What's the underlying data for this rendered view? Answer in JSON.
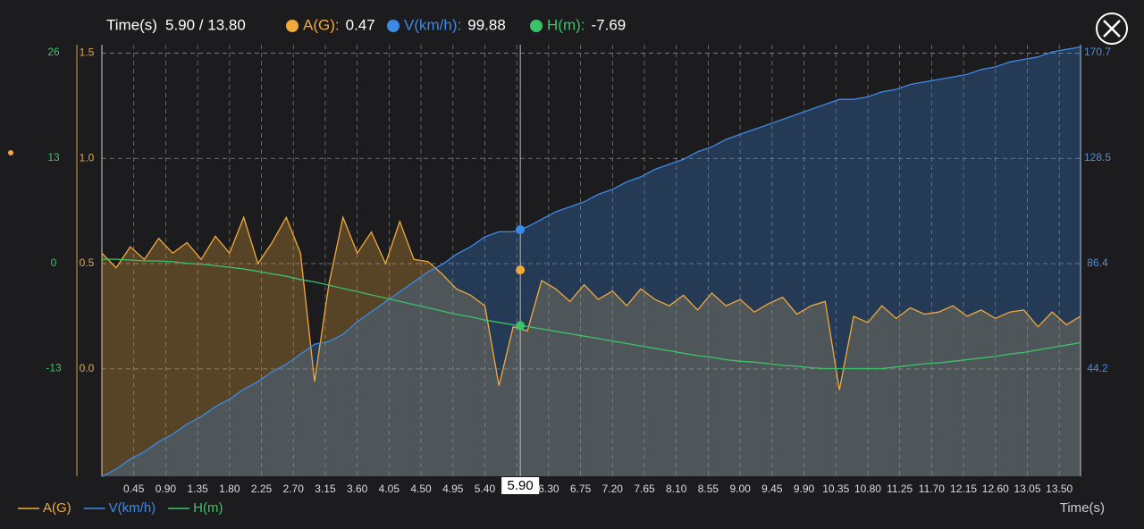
{
  "chart_data": {
    "type": "line",
    "x_label": "Time(s)",
    "xlim": [
      0,
      13.8
    ],
    "xticks": [
      {
        "value": 0.45,
        "label": "0.45"
      },
      {
        "value": 0.9,
        "label": "0.90"
      },
      {
        "value": 1.35,
        "label": "1.35"
      },
      {
        "value": 1.8,
        "label": "1.80"
      },
      {
        "value": 2.25,
        "label": "2.25"
      },
      {
        "value": 2.7,
        "label": "2.70"
      },
      {
        "value": 3.15,
        "label": "3.15"
      },
      {
        "value": 3.6,
        "label": "3.60"
      },
      {
        "value": 4.05,
        "label": "4.05"
      },
      {
        "value": 4.5,
        "label": "4.50"
      },
      {
        "value": 4.95,
        "label": "4.95"
      },
      {
        "value": 5.4,
        "label": "5.40"
      },
      {
        "value": 5.85,
        "label": "5.85"
      },
      {
        "value": 6.3,
        "label": "6.30"
      },
      {
        "value": 6.75,
        "label": "6.75"
      },
      {
        "value": 7.2,
        "label": "7.20"
      },
      {
        "value": 7.65,
        "label": "7.65"
      },
      {
        "value": 8.1,
        "label": "8.10"
      },
      {
        "value": 8.55,
        "label": "8.55"
      },
      {
        "value": 9.0,
        "label": "9.00"
      },
      {
        "value": 9.45,
        "label": "9.45"
      },
      {
        "value": 9.9,
        "label": "9.90"
      },
      {
        "value": 10.35,
        "label": "10.35"
      },
      {
        "value": 10.8,
        "label": "10.80"
      },
      {
        "value": 11.25,
        "label": "11.25"
      },
      {
        "value": 11.7,
        "label": "11.70"
      },
      {
        "value": 12.15,
        "label": "12.15"
      },
      {
        "value": 12.6,
        "label": "12.60"
      },
      {
        "value": 13.05,
        "label": "13.05"
      },
      {
        "value": 13.5,
        "label": "13.50"
      }
    ],
    "ylim": [
      -0.51,
      1.54
    ],
    "yticks": [
      {
        "value": 0,
        "label": "0.0"
      },
      0.5,
      {
        "value": 1,
        "label": "1.0"
      },
      1.5
    ],
    "y2lim": [
      1.15,
      173.9
    ],
    "y2ticks": [
      44.2,
      86.4,
      128.5,
      170.7
    ],
    "y3lim": [
      -26.3,
      27
    ],
    "y3ticks": [
      -13,
      0,
      13,
      26
    ],
    "grid": true,
    "x": [
      0,
      0.2,
      0.4,
      0.6,
      0.8,
      1.0,
      1.2,
      1.4,
      1.6,
      1.8,
      2.0,
      2.2,
      2.4,
      2.6,
      2.8,
      3.0,
      3.2,
      3.4,
      3.6,
      3.8,
      4.0,
      4.2,
      4.4,
      4.6,
      4.8,
      5.0,
      5.2,
      5.4,
      5.6,
      5.8,
      6.0,
      6.2,
      6.4,
      6.6,
      6.8,
      7.0,
      7.2,
      7.4,
      7.6,
      7.8,
      8.0,
      8.2,
      8.4,
      8.6,
      8.8,
      9.0,
      9.2,
      9.4,
      9.6,
      9.8,
      10.0,
      10.2,
      10.4,
      10.6,
      10.8,
      11.0,
      11.2,
      11.4,
      11.6,
      11.8,
      12.0,
      12.2,
      12.4,
      12.6,
      12.8,
      13.0,
      13.2,
      13.4,
      13.6,
      13.8
    ],
    "series": [
      {
        "name": "A(G)",
        "color": "#f2a93b",
        "axis": "y",
        "fill": true,
        "values": [
          0.55,
          0.48,
          0.58,
          0.52,
          0.62,
          0.55,
          0.6,
          0.52,
          0.63,
          0.55,
          0.72,
          0.5,
          0.6,
          0.72,
          0.55,
          -0.06,
          0.4,
          0.72,
          0.55,
          0.65,
          0.5,
          0.7,
          0.52,
          0.51,
          0.45,
          0.38,
          0.35,
          0.3,
          -0.08,
          0.2,
          0.18,
          0.42,
          0.38,
          0.32,
          0.4,
          0.33,
          0.37,
          0.3,
          0.38,
          0.33,
          0.3,
          0.35,
          0.28,
          0.36,
          0.3,
          0.33,
          0.27,
          0.31,
          0.34,
          0.26,
          0.3,
          0.32,
          -0.1,
          0.25,
          0.22,
          0.3,
          0.24,
          0.29,
          0.26,
          0.27,
          0.3,
          0.25,
          0.28,
          0.24,
          0.27,
          0.28,
          0.2,
          0.27,
          0.21,
          0.25
        ]
      },
      {
        "name": "V(km/h)",
        "color": "#3d8ae6",
        "axis": "y2",
        "fill": true,
        "values": [
          1,
          4,
          8,
          11,
          15,
          18,
          22,
          25,
          29,
          32,
          36,
          39,
          43,
          46,
          50,
          54,
          55,
          58,
          63,
          67,
          71,
          75,
          79,
          83,
          86,
          90,
          93,
          97,
          99,
          99,
          101,
          104,
          107,
          109,
          111,
          114,
          116,
          119,
          121,
          124,
          126,
          128,
          131,
          133,
          136,
          138,
          140,
          142,
          144,
          146,
          148,
          150,
          152,
          152,
          153,
          155,
          156,
          158,
          159,
          160,
          161,
          162,
          164,
          165,
          167,
          168,
          169,
          171,
          172,
          173
        ]
      },
      {
        "name": "H(m)",
        "color": "#3cc36a",
        "axis": "y3",
        "fill": false,
        "values": [
          0.5,
          0.5,
          0.4,
          0.3,
          0.3,
          0.2,
          0,
          -0.1,
          -0.3,
          -0.5,
          -0.7,
          -1.0,
          -1.3,
          -1.6,
          -2.0,
          -2.3,
          -2.7,
          -3.1,
          -3.5,
          -3.9,
          -4.3,
          -4.7,
          -5.1,
          -5.5,
          -5.9,
          -6.3,
          -6.6,
          -7.0,
          -7.3,
          -7.6,
          -7.8,
          -8.1,
          -8.4,
          -8.7,
          -9.0,
          -9.3,
          -9.6,
          -9.9,
          -10.2,
          -10.5,
          -10.8,
          -11.1,
          -11.4,
          -11.6,
          -11.9,
          -12.1,
          -12.2,
          -12.4,
          -12.6,
          -12.7,
          -12.9,
          -13.0,
          -13.0,
          -13.0,
          -13.0,
          -13.0,
          -12.8,
          -12.6,
          -12.4,
          -12.3,
          -12.1,
          -11.9,
          -11.7,
          -11.5,
          -11.2,
          -11.0,
          -10.7,
          -10.4,
          -10.1,
          -9.8
        ]
      }
    ],
    "cursor": {
      "x": 5.9,
      "label": "5.90"
    },
    "readout": {
      "time_label": "Time(s)",
      "time_text": "5.90 / 13.80",
      "items": [
        {
          "label": "A(G):",
          "value": 0.47
        },
        {
          "label": "V(km/h):",
          "value": 99.88
        },
        {
          "label": "H(m):",
          "value": -7.69
        }
      ]
    }
  }
}
